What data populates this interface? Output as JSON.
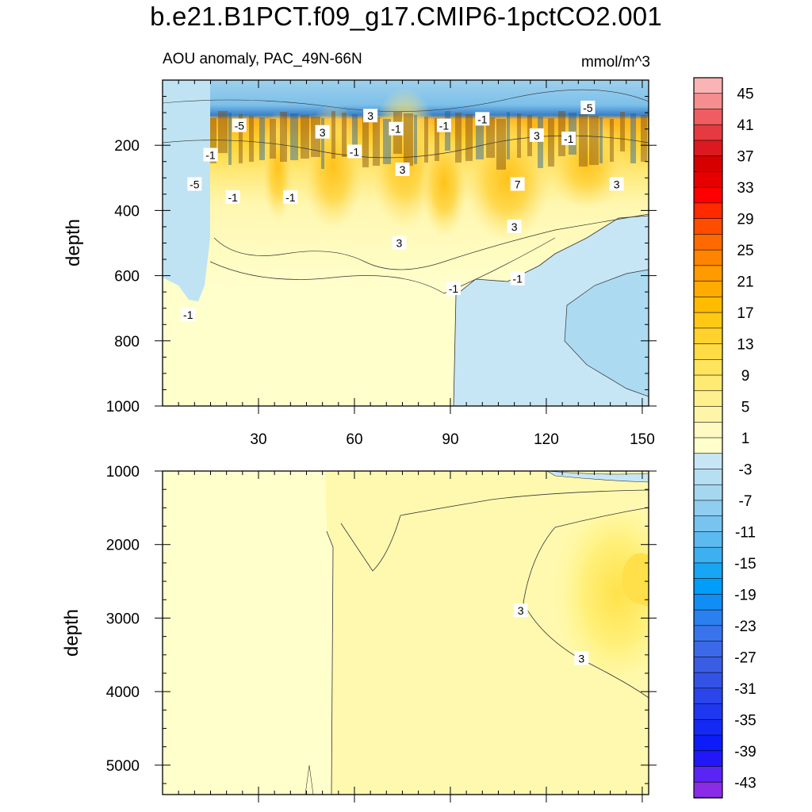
{
  "chart_data": {
    "title": "b.e21.B1PCT.f09_g17.CMIP6-1pctCO2.001",
    "subtitle_left": "AOU anomaly, PAC_49N-66N",
    "subtitle_right": "mmol/m^3",
    "type": "heatmap",
    "xlabel": "",
    "ylabel": "depth",
    "xlim": [
      0,
      152
    ],
    "x_ticks": [
      30,
      60,
      90,
      120,
      150
    ],
    "top_panel": {
      "ylim": [
        0,
        1000
      ],
      "y_ticks": [
        200,
        400,
        600,
        800,
        1000
      ],
      "y_reversed": true,
      "contour_labels": [
        {
          "x": 8,
          "y": 720,
          "text": "-1"
        },
        {
          "x": 10,
          "y": 320,
          "text": "-5"
        },
        {
          "x": 15,
          "y": 230,
          "text": "-1"
        },
        {
          "x": 22,
          "y": 360,
          "text": "-1"
        },
        {
          "x": 24,
          "y": 140,
          "text": "-5"
        },
        {
          "x": 40,
          "y": 360,
          "text": "-1"
        },
        {
          "x": 50,
          "y": 160,
          "text": "3"
        },
        {
          "x": 60,
          "y": 220,
          "text": "-1"
        },
        {
          "x": 65,
          "y": 110,
          "text": "3"
        },
        {
          "x": 73,
          "y": 150,
          "text": "-1"
        },
        {
          "x": 75,
          "y": 275,
          "text": "3"
        },
        {
          "x": 74,
          "y": 500,
          "text": "3"
        },
        {
          "x": 88,
          "y": 140,
          "text": "-1"
        },
        {
          "x": 91,
          "y": 640,
          "text": "-1"
        },
        {
          "x": 100,
          "y": 120,
          "text": "-1"
        },
        {
          "x": 110,
          "y": 450,
          "text": "3"
        },
        {
          "x": 111,
          "y": 610,
          "text": "-1"
        },
        {
          "x": 111,
          "y": 320,
          "text": "7"
        },
        {
          "x": 117,
          "y": 170,
          "text": "3"
        },
        {
          "x": 127,
          "y": 180,
          "text": "-1"
        },
        {
          "x": 133,
          "y": 85,
          "text": "-5"
        },
        {
          "x": 142,
          "y": 320,
          "text": "3"
        }
      ]
    },
    "bottom_panel": {
      "ylim": [
        1000,
        5400
      ],
      "y_ticks": [
        1000,
        2000,
        3000,
        4000,
        5000
      ],
      "y_reversed": true,
      "contour_labels": [
        {
          "x": 112,
          "y": 2900,
          "text": "3"
        },
        {
          "x": 131,
          "y": 3550,
          "text": "3"
        }
      ]
    },
    "colorbar": {
      "labels": [
        "45",
        "41",
        "37",
        "33",
        "29",
        "25",
        "21",
        "17",
        "13",
        "9",
        "5",
        "1",
        "-3",
        "-7",
        "-11",
        "-15",
        "-19",
        "-23",
        "-27",
        "-31",
        "-35",
        "-39",
        "-43"
      ],
      "colors": [
        "#fbb4b6",
        "#f68d8f",
        "#ef5d61",
        "#e53b40",
        "#dc1920",
        "#d60000",
        "#e60000",
        "#ff0000",
        "#ff2a00",
        "#ff4d00",
        "#ff6a00",
        "#ff8400",
        "#ff9a00",
        "#ffab00",
        "#ffbb00",
        "#ffc814",
        "#ffd22e",
        "#ffdc44",
        "#ffe45e",
        "#ffea74",
        "#fff08e",
        "#fff5a9",
        "#fff9c2",
        "#ffffcc",
        "#c7e6f5",
        "#b7dff3",
        "#a6d7f0",
        "#8fcef0",
        "#78c4ef",
        "#5cbaf0",
        "#3db0f2",
        "#17a6f3",
        "#009dfa",
        "#118ef5",
        "#2a80ef",
        "#3a74ec",
        "#3c69e8",
        "#3a5de4",
        "#3353e6",
        "#2b45ea",
        "#1f37ef",
        "#1529f5",
        "#0c1bf8",
        "#2018f8",
        "#5a24f4",
        "#8a2be8"
      ]
    }
  }
}
